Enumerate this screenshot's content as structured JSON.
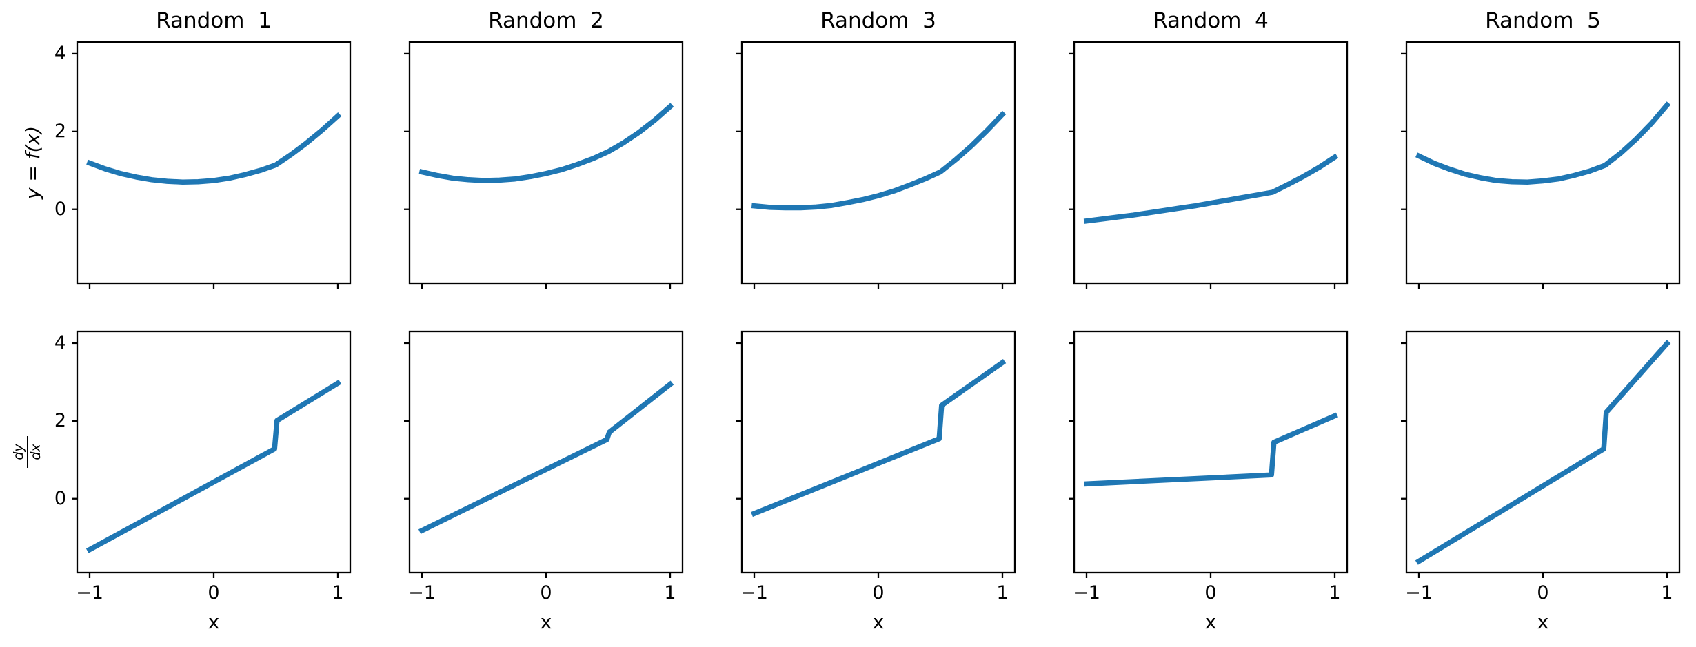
{
  "figure": {
    "background": "#ffffff"
  },
  "style": {
    "line_color": "#1f77b4",
    "line_width": 7.5,
    "axis_color": "#000000",
    "text_color": "#000000"
  },
  "chart_data": {
    "type": "line",
    "grid_layout": "2 rows x 5 columns, shared x and y axes, no gridlines, no legend",
    "xlim": [
      -1.1,
      1.1
    ],
    "ylim": [
      -1.9,
      4.3
    ],
    "xticks": [
      -1,
      0,
      1
    ],
    "xticklabels": [
      "−1",
      "0",
      "1"
    ],
    "yticks": [
      4,
      2,
      0
    ],
    "yticklabels": [
      "4",
      "2",
      "0"
    ],
    "xlabel": "x",
    "col_titles": [
      "Random  1",
      "Random  2",
      "Random  3",
      "Random  4",
      "Random  5"
    ],
    "top_row": {
      "ylabel": "y = f(x)",
      "series": [
        {
          "name": "Random  1 f(x)",
          "points": [
            [
              -1,
              1.19
            ],
            [
              -0.875,
              1.04
            ],
            [
              -0.75,
              0.92
            ],
            [
              -0.625,
              0.83
            ],
            [
              -0.5,
              0.76
            ],
            [
              -0.375,
              0.72
            ],
            [
              -0.25,
              0.7
            ],
            [
              -0.125,
              0.71
            ],
            [
              0,
              0.74
            ],
            [
              0.125,
              0.8
            ],
            [
              0.25,
              0.89
            ],
            [
              0.375,
              1.0
            ],
            [
              0.5,
              1.14
            ],
            [
              0.625,
              1.41
            ],
            [
              0.75,
              1.71
            ],
            [
              0.875,
              2.04
            ],
            [
              1,
              2.4
            ]
          ]
        },
        {
          "name": "Random  2 f(x)",
          "points": [
            [
              -1,
              0.96
            ],
            [
              -0.875,
              0.87
            ],
            [
              -0.75,
              0.8
            ],
            [
              -0.625,
              0.76
            ],
            [
              -0.5,
              0.74
            ],
            [
              -0.375,
              0.75
            ],
            [
              -0.25,
              0.78
            ],
            [
              -0.125,
              0.84
            ],
            [
              0,
              0.92
            ],
            [
              0.125,
              1.02
            ],
            [
              0.25,
              1.15
            ],
            [
              0.375,
              1.3
            ],
            [
              0.5,
              1.48
            ],
            [
              0.625,
              1.71
            ],
            [
              0.75,
              1.98
            ],
            [
              0.875,
              2.29
            ],
            [
              1,
              2.64
            ]
          ]
        },
        {
          "name": "Random  3 f(x)",
          "points": [
            [
              -1,
              0.09
            ],
            [
              -0.875,
              0.05
            ],
            [
              -0.75,
              0.04
            ],
            [
              -0.625,
              0.04
            ],
            [
              -0.5,
              0.06
            ],
            [
              -0.375,
              0.1
            ],
            [
              -0.25,
              0.17
            ],
            [
              -0.125,
              0.25
            ],
            [
              0,
              0.35
            ],
            [
              0.125,
              0.47
            ],
            [
              0.25,
              0.62
            ],
            [
              0.375,
              0.78
            ],
            [
              0.5,
              0.96
            ],
            [
              0.625,
              1.28
            ],
            [
              0.75,
              1.63
            ],
            [
              0.875,
              2.02
            ],
            [
              1,
              2.44
            ]
          ]
        },
        {
          "name": "Random  4 f(x)",
          "points": [
            [
              -1,
              -0.3
            ],
            [
              -0.875,
              -0.25
            ],
            [
              -0.75,
              -0.2
            ],
            [
              -0.625,
              -0.15
            ],
            [
              -0.5,
              -0.09
            ],
            [
              -0.375,
              -0.03
            ],
            [
              -0.25,
              0.03
            ],
            [
              -0.125,
              0.09
            ],
            [
              0,
              0.16
            ],
            [
              0.125,
              0.23
            ],
            [
              0.25,
              0.3
            ],
            [
              0.375,
              0.37
            ],
            [
              0.5,
              0.44
            ],
            [
              0.625,
              0.64
            ],
            [
              0.75,
              0.85
            ],
            [
              0.875,
              1.08
            ],
            [
              1,
              1.34
            ]
          ]
        },
        {
          "name": "Random  5 f(x)",
          "points": [
            [
              -1,
              1.37
            ],
            [
              -0.875,
              1.18
            ],
            [
              -0.75,
              1.03
            ],
            [
              -0.625,
              0.9
            ],
            [
              -0.5,
              0.81
            ],
            [
              -0.375,
              0.74
            ],
            [
              -0.25,
              0.71
            ],
            [
              -0.125,
              0.7
            ],
            [
              0,
              0.73
            ],
            [
              0.125,
              0.78
            ],
            [
              0.25,
              0.87
            ],
            [
              0.375,
              0.98
            ],
            [
              0.5,
              1.13
            ],
            [
              0.625,
              1.44
            ],
            [
              0.75,
              1.8
            ],
            [
              0.875,
              2.21
            ],
            [
              1,
              2.68
            ]
          ]
        }
      ]
    },
    "bottom_row": {
      "ylabel": "dy/dx",
      "ylabel_numerator": "dy",
      "ylabel_denominator": "dx",
      "jump_x": 0.5,
      "series": [
        {
          "name": "Random  1 dy/dx",
          "points": [
            [
              -1,
              -1.31
            ],
            [
              0.49,
              1.28
            ],
            [
              0.51,
              2.01
            ],
            [
              1,
              2.97
            ]
          ]
        },
        {
          "name": "Random  2 dy/dx",
          "points": [
            [
              -1,
              -0.82
            ],
            [
              0.49,
              1.52
            ],
            [
              0.51,
              1.71
            ],
            [
              1,
              2.94
            ]
          ]
        },
        {
          "name": "Random  3 dy/dx",
          "points": [
            [
              -1,
              -0.38
            ],
            [
              0.49,
              1.54
            ],
            [
              0.51,
              2.4
            ],
            [
              1,
              3.5
            ]
          ]
        },
        {
          "name": "Random  4 dy/dx",
          "points": [
            [
              -1,
              0.38
            ],
            [
              0.49,
              0.61
            ],
            [
              0.51,
              1.45
            ],
            [
              1,
              2.13
            ]
          ]
        },
        {
          "name": "Random  5 dy/dx",
          "points": [
            [
              -1,
              -1.61
            ],
            [
              0.49,
              1.28
            ],
            [
              0.51,
              2.22
            ],
            [
              1,
              3.99
            ]
          ]
        }
      ]
    }
  }
}
